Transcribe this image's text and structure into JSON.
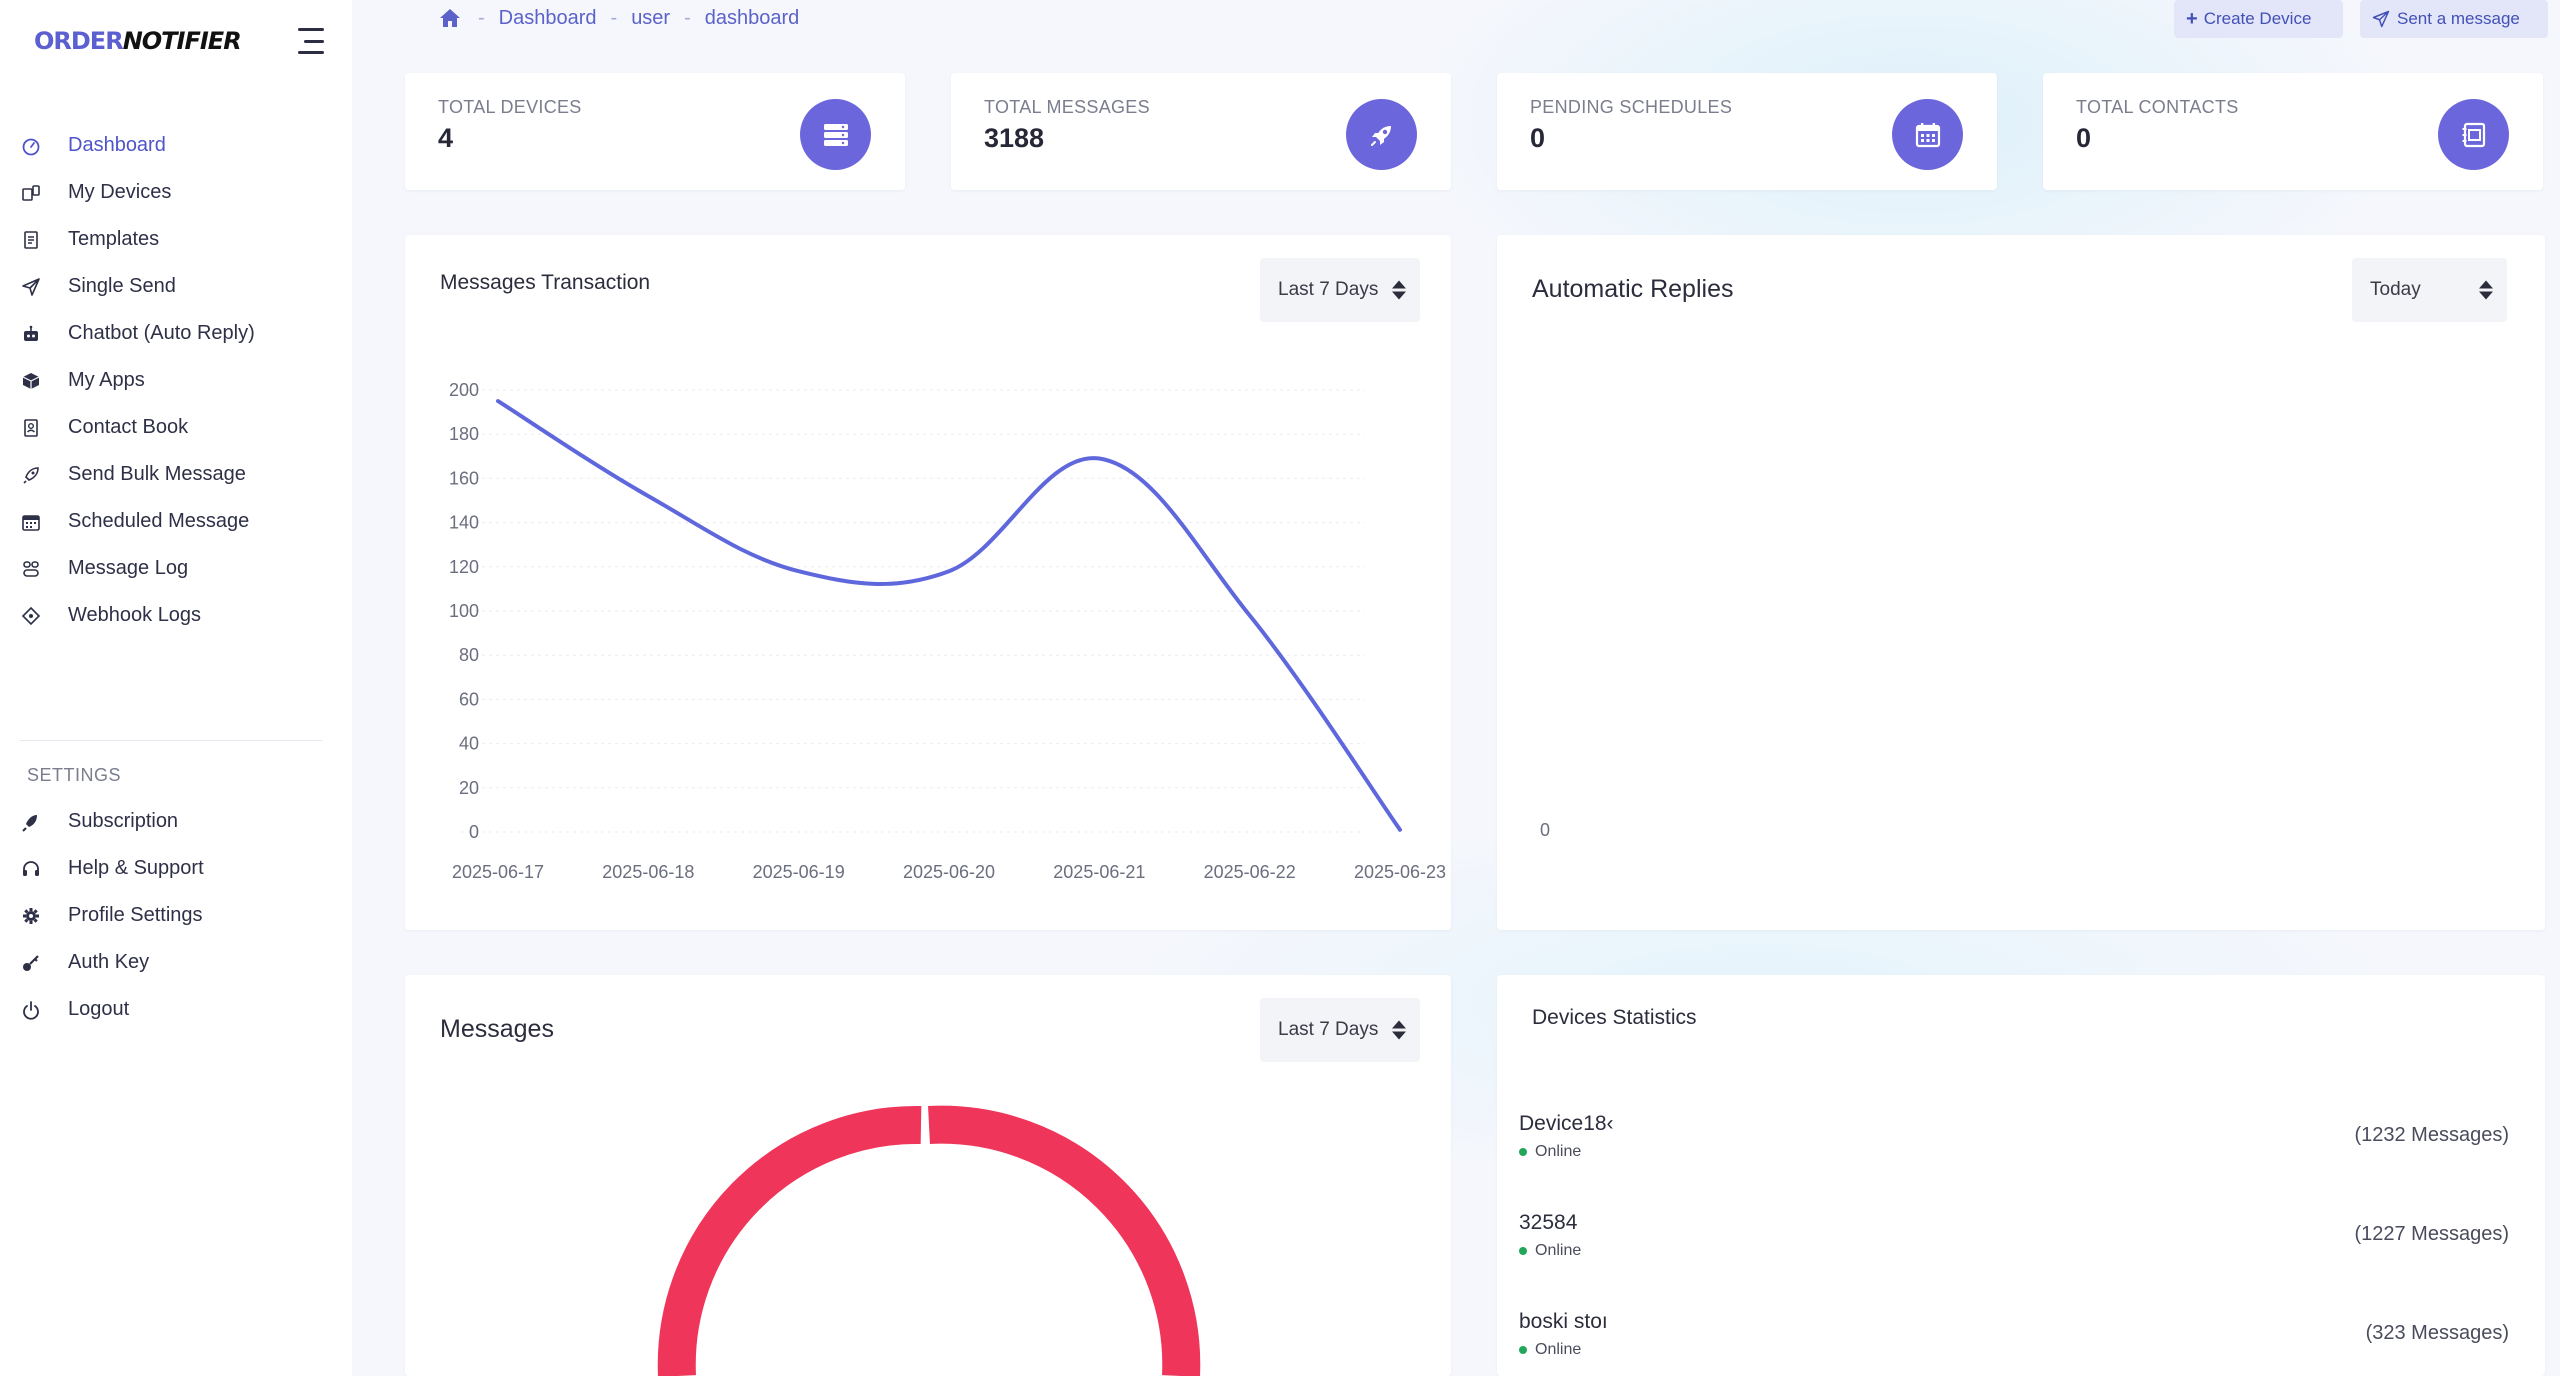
{
  "brand": {
    "part1": "ORDER",
    "part2": "NOTIFIER"
  },
  "breadcrumb": [
    "Dashboard",
    "user",
    "dashboard"
  ],
  "top_buttons": {
    "create_device": "Create Device",
    "sent_message": "Sent a message"
  },
  "sidebar": {
    "items": [
      {
        "label": "Dashboard",
        "icon": "dashboard-icon",
        "active": true
      },
      {
        "label": "My Devices",
        "icon": "devices-icon"
      },
      {
        "label": "Templates",
        "icon": "templates-icon"
      },
      {
        "label": "Single Send",
        "icon": "send-icon"
      },
      {
        "label": "Chatbot (Auto Reply)",
        "icon": "robot-icon"
      },
      {
        "label": "My Apps",
        "icon": "apps-box-icon"
      },
      {
        "label": "Contact Book",
        "icon": "contact-book-icon"
      },
      {
        "label": "Send Bulk Message",
        "icon": "rocket-icon"
      },
      {
        "label": "Scheduled Message",
        "icon": "calendar-icon"
      },
      {
        "label": "Message Log",
        "icon": "log-icon"
      },
      {
        "label": "Webhook Logs",
        "icon": "webhook-icon"
      }
    ],
    "settings_label": "SETTINGS",
    "settings_items": [
      {
        "label": "Subscription",
        "icon": "subscription-icon"
      },
      {
        "label": "Help & Support",
        "icon": "headset-icon"
      },
      {
        "label": "Profile Settings",
        "icon": "gear-icon"
      },
      {
        "label": "Auth Key",
        "icon": "key-icon"
      },
      {
        "label": "Logout",
        "icon": "power-icon"
      }
    ]
  },
  "stats": [
    {
      "label": "TOTAL DEVICES",
      "value": "4",
      "icon": "server-icon"
    },
    {
      "label": "TOTAL MESSAGES",
      "value": "3188",
      "icon": "rocket-icon"
    },
    {
      "label": "PENDING SCHEDULES",
      "value": "0",
      "icon": "calendar-icon"
    },
    {
      "label": "TOTAL CONTACTS",
      "value": "0",
      "icon": "contact-book-icon"
    }
  ],
  "messages_transaction": {
    "title": "Messages Transaction",
    "filter": "Last 7 Days"
  },
  "automatic_replies": {
    "title": "Automatic Replies",
    "filter": "Today",
    "zero_label": "0"
  },
  "messages_panel": {
    "title": "Messages",
    "filter": "Last 7 Days"
  },
  "devices_statistics": {
    "title": "Devices Statistics",
    "devices": [
      {
        "name": "Device18‹",
        "status": "Online",
        "count": "(1232 Messages)"
      },
      {
        "name": "32584",
        "status": "Online",
        "count": "(1227 Messages)"
      },
      {
        "name": "boski stoı",
        "status": "Online",
        "count": "(323 Messages)"
      }
    ]
  },
  "colors": {
    "accent": "#6c66dc",
    "line": "#5f67dc",
    "donut": "#f0355a",
    "online": "#22a65a"
  },
  "chart_data": {
    "type": "line",
    "title": "Messages Transaction",
    "categories": [
      "2025-06-17",
      "2025-06-18",
      "2025-06-19",
      "2025-06-20",
      "2025-06-21",
      "2025-06-22",
      "2025-06-23"
    ],
    "values": [
      195,
      152,
      118,
      118,
      169,
      98,
      1
    ],
    "ylim": [
      0,
      200
    ],
    "yticks": [
      0,
      20,
      40,
      60,
      80,
      100,
      120,
      140,
      160,
      180,
      200
    ],
    "xlabel": "",
    "ylabel": ""
  }
}
